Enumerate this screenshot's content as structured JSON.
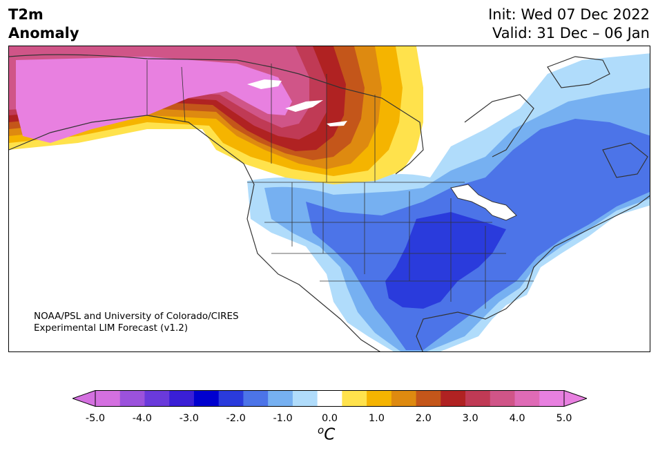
{
  "title": {
    "left_line1": "T2m",
    "left_line2": "Anomaly",
    "init": "Init: Wed 07 Dec 2022",
    "valid": "Valid: 31 Dec – 06 Jan"
  },
  "credit": {
    "line1": "NOAA/PSL and University of Colorado/CIRES",
    "line2": "Experimental LIM Forecast (v1.2)"
  },
  "colorbar": {
    "unit_base": "C",
    "unit_sup": "o",
    "ticks": [
      "-5.0",
      "-4.0",
      "-3.0",
      "-2.0",
      "-1.0",
      "0.0",
      "1.0",
      "2.0",
      "3.0",
      "4.0",
      "5.0"
    ],
    "bins": [
      -5.0,
      -4.5,
      -4.0,
      -3.5,
      -3.0,
      -2.5,
      -2.0,
      -1.5,
      -1.0,
      -0.5,
      0.5,
      1.0,
      1.5,
      2.0,
      2.5,
      3.0,
      3.5,
      4.0,
      4.5,
      5.0
    ],
    "colors": [
      "#d470e0",
      "#9b52dc",
      "#6a3adb",
      "#3a1fd6",
      "#0000cf",
      "#2a3bdc",
      "#4c74e8",
      "#76b0f1",
      "#b0dcfb",
      "#ffffff",
      "#ffe24c",
      "#f5b400",
      "#de8a10",
      "#c4561a",
      "#b02222",
      "#c03a55",
      "#d05588",
      "#df6bb6",
      "#e880e0"
    ],
    "extend_low_color": "#d470e0",
    "extend_high_color": "#e880e0"
  },
  "map": {
    "region": "North America",
    "warm_anomaly_region": "Alaska and western/central Canada",
    "cold_anomaly_region": "Eastern and southern United States and eastern Canada"
  }
}
